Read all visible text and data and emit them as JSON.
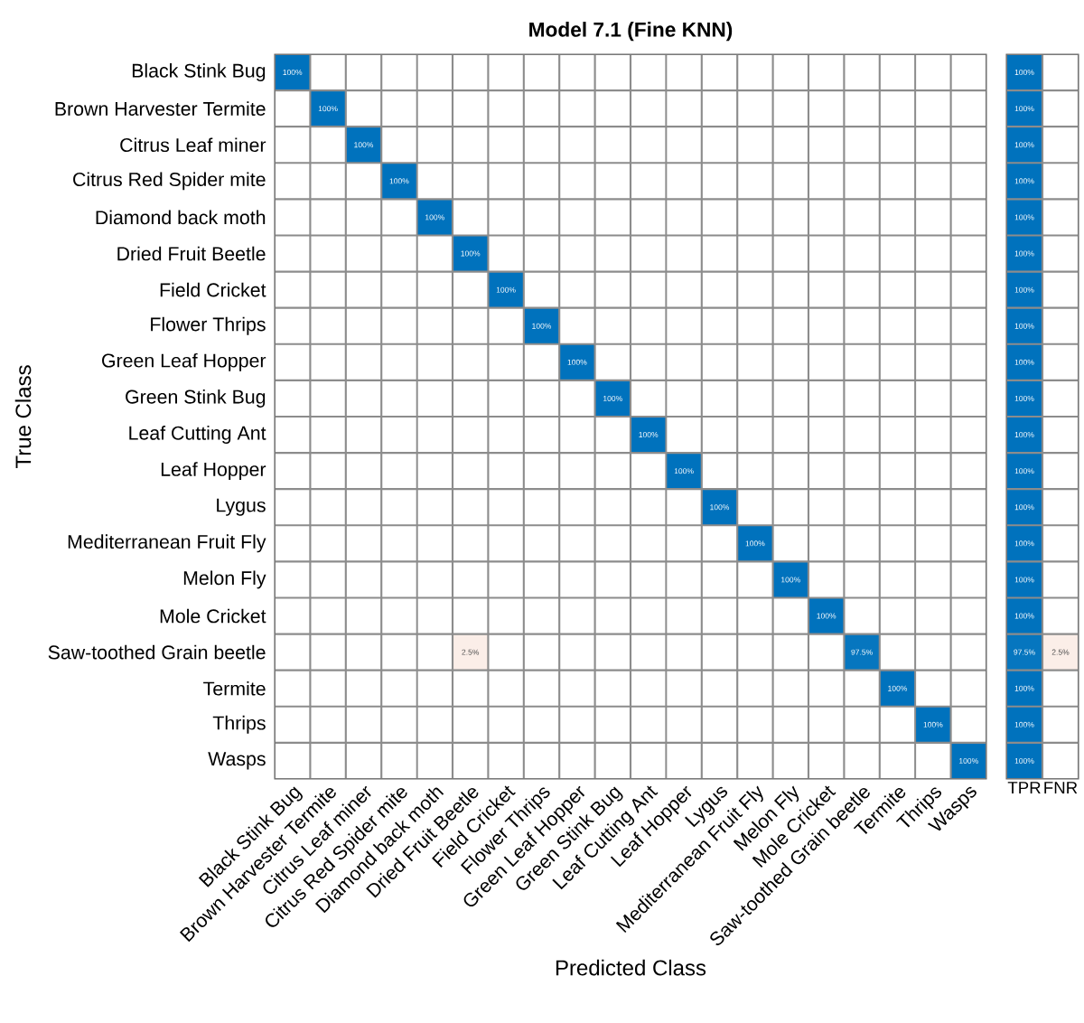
{
  "chart_data": [
    {
      "type": "heatmap",
      "title": "Model 7.1 (Fine KNN)",
      "xlabel": "Predicted Class",
      "ylabel": "True Class",
      "grid": true,
      "categories": [
        "Black Stink Bug",
        "Brown Harvester Termite",
        "Citrus Leaf miner",
        "Citrus Red Spider mite",
        "Diamond back moth",
        "Dried Fruit Beetle",
        "Field Cricket",
        "Flower Thrips",
        "Green Leaf Hopper",
        "Green Stink Bug",
        "Leaf Cutting Ant",
        "Leaf Hopper",
        "Lygus",
        "Mediterranean Fruit Fly",
        "Melon Fly",
        "Mole Cricket",
        "Saw-toothed Grain beetle",
        "Termite",
        "Thrips",
        "Wasps"
      ],
      "y_categories": [
        "Black Stink Bug",
        "Brown Harvester Termite",
        "Citrus Leaf miner",
        "Citrus Red Spider mite",
        "Diamond back moth",
        "Dried Fruit Beetle",
        "Field Cricket",
        "Flower Thrips",
        "Green Leaf Hopper",
        "Green Stink Bug",
        "Leaf Cutting Ant",
        "Leaf Hopper",
        "Lygus",
        "Mediterranean Fruit Fly",
        "Melon Fly",
        "Mole Cricket",
        "Saw-toothed Grain beetle",
        "Termite",
        "Thrips",
        "Wasps"
      ],
      "cells": [
        [
          100,
          null,
          null,
          null,
          null,
          null,
          null,
          null,
          null,
          null,
          null,
          null,
          null,
          null,
          null,
          null,
          null,
          null,
          null,
          null
        ],
        [
          null,
          100,
          null,
          null,
          null,
          null,
          null,
          null,
          null,
          null,
          null,
          null,
          null,
          null,
          null,
          null,
          null,
          null,
          null,
          null
        ],
        [
          null,
          null,
          100,
          null,
          null,
          null,
          null,
          null,
          null,
          null,
          null,
          null,
          null,
          null,
          null,
          null,
          null,
          null,
          null,
          null
        ],
        [
          null,
          null,
          null,
          100,
          null,
          null,
          null,
          null,
          null,
          null,
          null,
          null,
          null,
          null,
          null,
          null,
          null,
          null,
          null,
          null
        ],
        [
          null,
          null,
          null,
          null,
          100,
          null,
          null,
          null,
          null,
          null,
          null,
          null,
          null,
          null,
          null,
          null,
          null,
          null,
          null,
          null
        ],
        [
          null,
          null,
          null,
          null,
          null,
          100,
          null,
          null,
          null,
          null,
          null,
          null,
          null,
          null,
          null,
          null,
          null,
          null,
          null,
          null
        ],
        [
          null,
          null,
          null,
          null,
          null,
          null,
          100,
          null,
          null,
          null,
          null,
          null,
          null,
          null,
          null,
          null,
          null,
          null,
          null,
          null
        ],
        [
          null,
          null,
          null,
          null,
          null,
          null,
          null,
          100,
          null,
          null,
          null,
          null,
          null,
          null,
          null,
          null,
          null,
          null,
          null,
          null
        ],
        [
          null,
          null,
          null,
          null,
          null,
          null,
          null,
          null,
          100,
          null,
          null,
          null,
          null,
          null,
          null,
          null,
          null,
          null,
          null,
          null
        ],
        [
          null,
          null,
          null,
          null,
          null,
          null,
          null,
          null,
          null,
          100,
          null,
          null,
          null,
          null,
          null,
          null,
          null,
          null,
          null,
          null
        ],
        [
          null,
          null,
          null,
          null,
          null,
          null,
          null,
          null,
          null,
          null,
          100,
          null,
          null,
          null,
          null,
          null,
          null,
          null,
          null,
          null
        ],
        [
          null,
          null,
          null,
          null,
          null,
          null,
          null,
          null,
          null,
          null,
          null,
          100,
          null,
          null,
          null,
          null,
          null,
          null,
          null,
          null
        ],
        [
          null,
          null,
          null,
          null,
          null,
          null,
          null,
          null,
          null,
          null,
          null,
          null,
          100,
          null,
          null,
          null,
          null,
          null,
          null,
          null
        ],
        [
          null,
          null,
          null,
          null,
          null,
          null,
          null,
          null,
          null,
          null,
          null,
          null,
          null,
          100,
          null,
          null,
          null,
          null,
          null,
          null
        ],
        [
          null,
          null,
          null,
          null,
          null,
          null,
          null,
          null,
          null,
          null,
          null,
          null,
          null,
          null,
          100,
          null,
          null,
          null,
          null,
          null
        ],
        [
          null,
          null,
          null,
          null,
          null,
          null,
          null,
          null,
          null,
          null,
          null,
          null,
          null,
          null,
          null,
          100,
          null,
          null,
          null,
          null
        ],
        [
          null,
          null,
          null,
          null,
          null,
          2.5,
          null,
          null,
          null,
          null,
          null,
          null,
          null,
          null,
          null,
          null,
          97.5,
          null,
          null,
          null
        ],
        [
          null,
          null,
          null,
          null,
          null,
          null,
          null,
          null,
          null,
          null,
          null,
          null,
          null,
          null,
          null,
          null,
          null,
          100,
          null,
          null
        ],
        [
          null,
          null,
          null,
          null,
          null,
          null,
          null,
          null,
          null,
          null,
          null,
          null,
          null,
          null,
          null,
          null,
          null,
          null,
          100,
          null
        ],
        [
          null,
          null,
          null,
          null,
          null,
          null,
          null,
          null,
          null,
          null,
          null,
          null,
          null,
          null,
          null,
          null,
          null,
          null,
          null,
          100
        ]
      ],
      "cell_labels": [
        [
          "100%",
          null,
          null,
          null,
          null,
          null,
          null,
          null,
          null,
          null,
          null,
          null,
          null,
          null,
          null,
          null,
          null,
          null,
          null,
          null
        ],
        [
          null,
          "100%",
          null,
          null,
          null,
          null,
          null,
          null,
          null,
          null,
          null,
          null,
          null,
          null,
          null,
          null,
          null,
          null,
          null,
          null
        ],
        [
          null,
          null,
          "100%",
          null,
          null,
          null,
          null,
          null,
          null,
          null,
          null,
          null,
          null,
          null,
          null,
          null,
          null,
          null,
          null,
          null
        ],
        [
          null,
          null,
          null,
          "100%",
          null,
          null,
          null,
          null,
          null,
          null,
          null,
          null,
          null,
          null,
          null,
          null,
          null,
          null,
          null,
          null
        ],
        [
          null,
          null,
          null,
          null,
          "100%",
          null,
          null,
          null,
          null,
          null,
          null,
          null,
          null,
          null,
          null,
          null,
          null,
          null,
          null,
          null
        ],
        [
          null,
          null,
          null,
          null,
          null,
          "100%",
          null,
          null,
          null,
          null,
          null,
          null,
          null,
          null,
          null,
          null,
          null,
          null,
          null,
          null
        ],
        [
          null,
          null,
          null,
          null,
          null,
          null,
          "100%",
          null,
          null,
          null,
          null,
          null,
          null,
          null,
          null,
          null,
          null,
          null,
          null,
          null
        ],
        [
          null,
          null,
          null,
          null,
          null,
          null,
          null,
          "100%",
          null,
          null,
          null,
          null,
          null,
          null,
          null,
          null,
          null,
          null,
          null,
          null
        ],
        [
          null,
          null,
          null,
          null,
          null,
          null,
          null,
          null,
          "100%",
          null,
          null,
          null,
          null,
          null,
          null,
          null,
          null,
          null,
          null,
          null
        ],
        [
          null,
          null,
          null,
          null,
          null,
          null,
          null,
          null,
          null,
          "100%",
          null,
          null,
          null,
          null,
          null,
          null,
          null,
          null,
          null,
          null
        ],
        [
          null,
          null,
          null,
          null,
          null,
          null,
          null,
          null,
          null,
          null,
          "100%",
          null,
          null,
          null,
          null,
          null,
          null,
          null,
          null,
          null
        ],
        [
          null,
          null,
          null,
          null,
          null,
          null,
          null,
          null,
          null,
          null,
          null,
          "100%",
          null,
          null,
          null,
          null,
          null,
          null,
          null,
          null
        ],
        [
          null,
          null,
          null,
          null,
          null,
          null,
          null,
          null,
          null,
          null,
          null,
          null,
          "100%",
          null,
          null,
          null,
          null,
          null,
          null,
          null
        ],
        [
          null,
          null,
          null,
          null,
          null,
          null,
          null,
          null,
          null,
          null,
          null,
          null,
          null,
          "100%",
          null,
          null,
          null,
          null,
          null,
          null
        ],
        [
          null,
          null,
          null,
          null,
          null,
          null,
          null,
          null,
          null,
          null,
          null,
          null,
          null,
          null,
          "100%",
          null,
          null,
          null,
          null,
          null
        ],
        [
          null,
          null,
          null,
          null,
          null,
          null,
          null,
          null,
          null,
          null,
          null,
          null,
          null,
          null,
          null,
          "100%",
          null,
          null,
          null,
          null
        ],
        [
          null,
          null,
          null,
          null,
          null,
          "2.5%",
          null,
          null,
          null,
          null,
          null,
          null,
          null,
          null,
          null,
          null,
          "97.5%",
          null,
          null,
          null
        ],
        [
          null,
          null,
          null,
          null,
          null,
          null,
          null,
          null,
          null,
          null,
          null,
          null,
          null,
          null,
          null,
          null,
          null,
          "100%",
          null,
          null
        ],
        [
          null,
          null,
          null,
          null,
          null,
          null,
          null,
          null,
          null,
          null,
          null,
          null,
          null,
          null,
          null,
          null,
          null,
          null,
          "100%",
          null
        ],
        [
          null,
          null,
          null,
          null,
          null,
          null,
          null,
          null,
          null,
          null,
          null,
          null,
          null,
          null,
          null,
          null,
          null,
          null,
          null,
          "100%"
        ]
      ]
    },
    {
      "type": "heatmap",
      "grid": true,
      "tick_labels": "x",
      "categories": [
        "TPR",
        "FNR"
      ],
      "y_categories": [
        null,
        null,
        null,
        null,
        null,
        null,
        null,
        null,
        null,
        null,
        null,
        null,
        null,
        null,
        null,
        null,
        null,
        null,
        null,
        null
      ],
      "cells": [
        [
          100,
          null
        ],
        [
          100,
          null
        ],
        [
          100,
          null
        ],
        [
          100,
          null
        ],
        [
          100,
          null
        ],
        [
          100,
          null
        ],
        [
          100,
          null
        ],
        [
          100,
          null
        ],
        [
          100,
          null
        ],
        [
          100,
          null
        ],
        [
          100,
          null
        ],
        [
          100,
          null
        ],
        [
          100,
          null
        ],
        [
          100,
          null
        ],
        [
          100,
          null
        ],
        [
          100,
          null
        ],
        [
          97.5,
          2.5
        ],
        [
          100,
          null
        ],
        [
          100,
          null
        ],
        [
          100,
          null
        ]
      ],
      "cell_labels": [
        [
          "100%",
          null
        ],
        [
          "100%",
          null
        ],
        [
          "100%",
          null
        ],
        [
          "100%",
          null
        ],
        [
          "100%",
          null
        ],
        [
          "100%",
          null
        ],
        [
          "100%",
          null
        ],
        [
          "100%",
          null
        ],
        [
          "100%",
          null
        ],
        [
          "100%",
          null
        ],
        [
          "100%",
          null
        ],
        [
          "100%",
          null
        ],
        [
          "100%",
          null
        ],
        [
          "100%",
          null
        ],
        [
          "100%",
          null
        ],
        [
          "100%",
          null
        ],
        [
          "97.5%",
          "2.5%"
        ],
        [
          "100%",
          null
        ],
        [
          "100%",
          null
        ],
        [
          "100%",
          null
        ]
      ]
    }
  ]
}
